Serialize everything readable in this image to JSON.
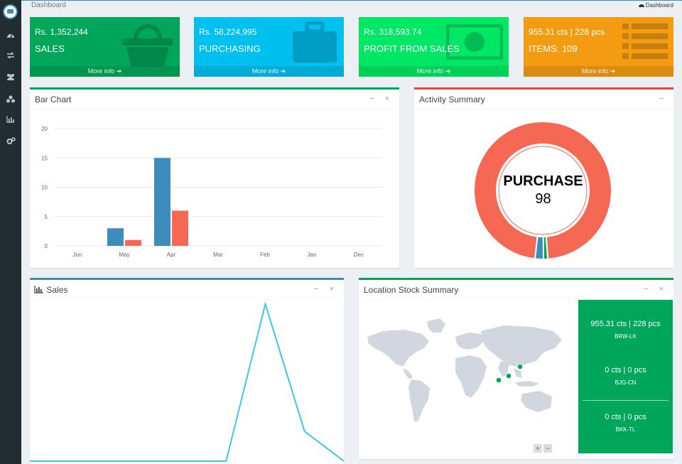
{
  "breadcrumb": {
    "left": "Dashboard",
    "right": "Dashboard"
  },
  "sidebar": {
    "items": [
      {
        "icon": "dashboard-icon"
      },
      {
        "icon": "exchange-icon"
      },
      {
        "icon": "users-icon"
      },
      {
        "icon": "diamonds-icon"
      },
      {
        "icon": "bar-chart-icon"
      },
      {
        "icon": "cogs-icon"
      }
    ]
  },
  "tiles": [
    {
      "value": "Rs. 1,352,244",
      "label": "SALES",
      "more": "More info",
      "color": "#00a65a",
      "icon": "basket-icon"
    },
    {
      "value": "Rs. 58,224,995",
      "label": "PURCHASING",
      "more": "More info",
      "color": "#00c0ef",
      "icon": "briefcase-icon"
    },
    {
      "value": "Rs. 318,593.74",
      "label": "PROFIT FROM SALES",
      "more": "More info",
      "color": "#00e765",
      "icon": "money-icon"
    },
    {
      "value": "955.31 cts | 228 pcs",
      "label": "ITEMS: 109",
      "more": "More info",
      "color": "#f39c12",
      "icon": "list-icon"
    }
  ],
  "bar_box": {
    "title": "Bar Chart",
    "tools": "− ×"
  },
  "activity_box": {
    "title": "Activity Summary",
    "tools": "−",
    "center_label": "PURCHASE",
    "center_value": "98"
  },
  "sales_box": {
    "title": "Sales",
    "tools": "− ×"
  },
  "location_box": {
    "title": "Location Stock Summary",
    "tools": "− ×",
    "locations": [
      {
        "value": "955.31 cts | 228 pcs",
        "code": "BRW-LK"
      },
      {
        "value": "0 cts | 0 pcs",
        "code": "BJG-CN"
      },
      {
        "value": "0 cts | 0 pcs",
        "code": "BKK-TL"
      }
    ],
    "zoom_in": "+",
    "zoom_out": "−"
  },
  "chart_data": [
    {
      "type": "bar",
      "categories": [
        "Jun",
        "May",
        "Apr",
        "Mar",
        "Feb",
        "Jan",
        "Dec"
      ],
      "series": [
        {
          "values": [
            0,
            3,
            15,
            0,
            0,
            0,
            0
          ],
          "color": "#3c8dbc"
        },
        {
          "values": [
            0,
            1,
            6,
            0,
            0,
            0,
            0
          ],
          "color": "#f56954"
        }
      ],
      "yticks": [
        0,
        5,
        10,
        15,
        20
      ],
      "ylim": [
        0,
        20
      ],
      "grid": true
    },
    {
      "type": "pie",
      "donut": true,
      "slices": [
        {
          "label": "PURCHASE",
          "value": 98,
          "color": "#f56954"
        },
        {
          "value": 1,
          "color": "#00a65a"
        },
        {
          "value": 2,
          "color": "#3c8dbc"
        }
      ]
    },
    {
      "type": "line",
      "color": "#3bc8e7",
      "values": [
        0,
        0,
        0,
        0,
        0,
        0,
        100,
        19,
        0
      ],
      "ylim": [
        0,
        100
      ]
    }
  ]
}
